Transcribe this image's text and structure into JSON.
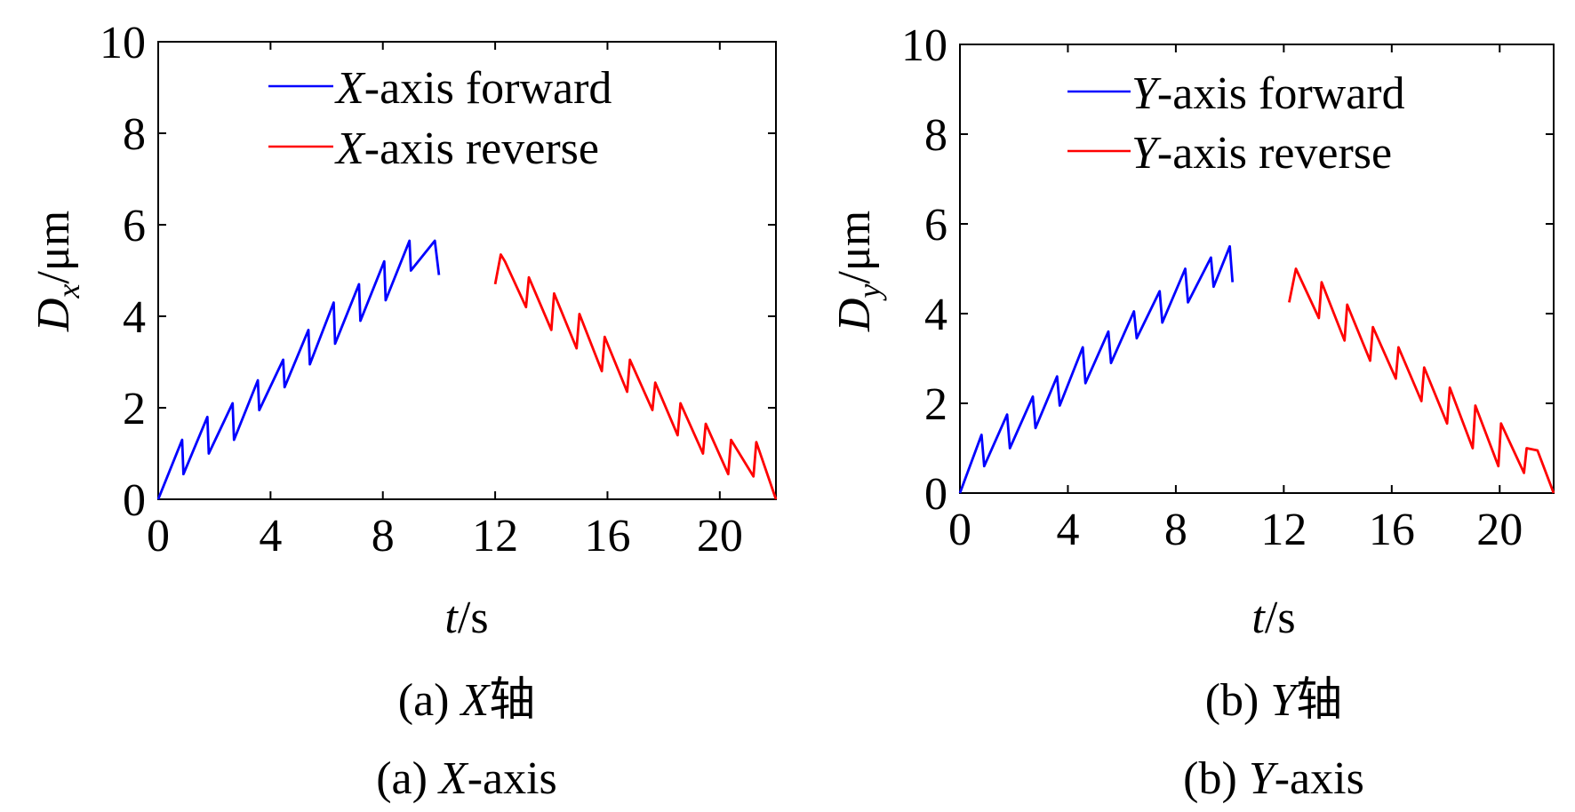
{
  "charts": [
    {
      "caption_cn_prefix": "(a) ",
      "caption_cn_axis": "X",
      "caption_cn_suffix": "轴",
      "caption_en_prefix": "(a) ",
      "caption_en_axis": "X",
      "caption_en_suffix": "-axis",
      "ylabel_main": "D",
      "ylabel_sub": "x",
      "ylabel_unit": "/μm",
      "xlabel_main": "t",
      "xlabel_unit": "/s",
      "legend": [
        {
          "axis": "X",
          "text": "-axis forward"
        },
        {
          "axis": "X",
          "text": "-axis reverse"
        }
      ]
    },
    {
      "caption_cn_prefix": "(b) ",
      "caption_cn_axis": "Y",
      "caption_cn_suffix": "轴",
      "caption_en_prefix": "(b) ",
      "caption_en_axis": "Y",
      "caption_en_suffix": "-axis",
      "ylabel_main": "D",
      "ylabel_sub": "y",
      "ylabel_unit": "/μm",
      "xlabel_main": "t",
      "xlabel_unit": "/s",
      "legend": [
        {
          "axis": "Y",
          "text": "-axis forward"
        },
        {
          "axis": "Y",
          "text": "-axis reverse"
        }
      ]
    }
  ],
  "colors": {
    "forward": "#0000ff",
    "reverse": "#ff0000",
    "axis": "#000000"
  },
  "chart_data": [
    {
      "type": "line",
      "title": "(a) X-axis",
      "xlabel": "t/s",
      "ylabel": "Dx/μm",
      "xlim": [
        0,
        22
      ],
      "ylim": [
        0,
        10
      ],
      "xticks": [
        0,
        4,
        8,
        12,
        16,
        20
      ],
      "yticks": [
        0,
        2,
        4,
        6,
        8,
        10
      ],
      "series": [
        {
          "name": "X-axis forward",
          "color": "#0000ff",
          "x": [
            0,
            0.85,
            0.9,
            1.75,
            1.8,
            2.65,
            2.7,
            3.55,
            3.6,
            4.45,
            4.5,
            5.35,
            5.4,
            6.25,
            6.3,
            7.15,
            7.2,
            8.05,
            8.1,
            8.95,
            9.0,
            9.85,
            10.0
          ],
          "y": [
            0,
            1.3,
            0.55,
            1.8,
            1.0,
            2.1,
            1.3,
            2.6,
            1.95,
            3.05,
            2.45,
            3.7,
            2.95,
            4.3,
            3.4,
            4.7,
            3.9,
            5.2,
            4.35,
            5.65,
            5.0,
            5.65,
            4.9
          ]
        },
        {
          "name": "X-axis reverse",
          "color": "#ff0000",
          "x": [
            12.0,
            12.2,
            12.35,
            13.1,
            13.2,
            14.0,
            14.1,
            14.9,
            15.0,
            15.8,
            15.9,
            16.7,
            16.8,
            17.6,
            17.7,
            18.5,
            18.6,
            19.4,
            19.5,
            20.3,
            20.4,
            21.2,
            21.3,
            22.0
          ],
          "y": [
            4.7,
            5.35,
            5.2,
            4.2,
            4.85,
            3.7,
            4.5,
            3.3,
            4.05,
            2.8,
            3.55,
            2.35,
            3.05,
            1.95,
            2.55,
            1.4,
            2.1,
            1.0,
            1.65,
            0.55,
            1.3,
            0.5,
            1.25,
            0
          ]
        }
      ]
    },
    {
      "type": "line",
      "title": "(b) Y-axis",
      "xlabel": "t/s",
      "ylabel": "Dy/μm",
      "xlim": [
        0,
        22
      ],
      "ylim": [
        0,
        10
      ],
      "xticks": [
        0,
        4,
        8,
        12,
        16,
        20
      ],
      "yticks": [
        0,
        2,
        4,
        6,
        8,
        10
      ],
      "series": [
        {
          "name": "Y-axis forward",
          "color": "#0000ff",
          "x": [
            0,
            0.8,
            0.9,
            1.75,
            1.85,
            2.7,
            2.8,
            3.6,
            3.7,
            4.55,
            4.65,
            5.5,
            5.6,
            6.45,
            6.55,
            7.4,
            7.5,
            8.35,
            8.45,
            9.3,
            9.4,
            10.0,
            10.1
          ],
          "y": [
            0,
            1.3,
            0.6,
            1.75,
            1.0,
            2.15,
            1.45,
            2.6,
            1.95,
            3.25,
            2.45,
            3.6,
            2.9,
            4.05,
            3.45,
            4.5,
            3.8,
            5.0,
            4.25,
            5.25,
            4.6,
            5.5,
            4.7
          ]
        },
        {
          "name": "Y-axis reverse",
          "color": "#ff0000",
          "x": [
            12.2,
            12.45,
            13.3,
            13.4,
            14.25,
            14.35,
            15.2,
            15.3,
            16.15,
            16.25,
            17.1,
            17.2,
            18.05,
            18.15,
            19.0,
            19.1,
            19.95,
            20.05,
            20.9,
            21.0,
            21.4,
            22.0
          ],
          "y": [
            4.25,
            5.0,
            3.9,
            4.7,
            3.4,
            4.2,
            2.95,
            3.7,
            2.55,
            3.25,
            2.05,
            2.8,
            1.55,
            2.35,
            1.0,
            1.95,
            0.6,
            1.55,
            0.45,
            1.0,
            0.95,
            0
          ]
        }
      ]
    }
  ]
}
